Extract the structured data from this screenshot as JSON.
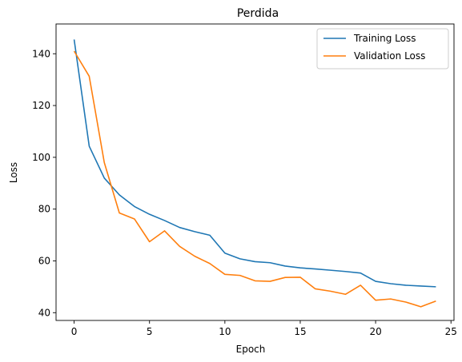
{
  "chart_data": {
    "type": "line",
    "title": "Perdida",
    "xlabel": "Epoch",
    "ylabel": "Loss",
    "xlim": [
      -1.2,
      25.2
    ],
    "ylim": [
      37.0,
      151.5
    ],
    "xticks": [
      0,
      5,
      10,
      15,
      20,
      25
    ],
    "yticks": [
      40,
      60,
      80,
      100,
      120,
      140
    ],
    "grid": false,
    "legend_position": "upper right",
    "x": [
      0,
      1,
      2,
      3,
      4,
      5,
      6,
      7,
      8,
      9,
      10,
      11,
      12,
      13,
      14,
      15,
      16,
      17,
      18,
      19,
      20,
      21,
      22,
      23,
      24
    ],
    "series": [
      {
        "name": "Training Loss",
        "color": "#1f77b4",
        "values": [
          145.5,
          104.3,
          92.0,
          85.5,
          81.0,
          78.0,
          75.6,
          72.9,
          71.3,
          69.9,
          63.0,
          60.8,
          59.7,
          59.3,
          58.0,
          57.3,
          56.9,
          56.4,
          55.9,
          55.3,
          52.1,
          51.2,
          50.6,
          50.3,
          50.0
        ]
      },
      {
        "name": "Validation Loss",
        "color": "#ff7f0e",
        "values": [
          141.0,
          131.3,
          98.0,
          78.5,
          76.2,
          67.4,
          71.6,
          65.6,
          61.8,
          59.0,
          54.8,
          54.4,
          52.3,
          52.1,
          53.6,
          53.7,
          49.2,
          48.3,
          47.1,
          50.6,
          44.8,
          45.3,
          44.1,
          42.3,
          44.5
        ]
      }
    ]
  }
}
